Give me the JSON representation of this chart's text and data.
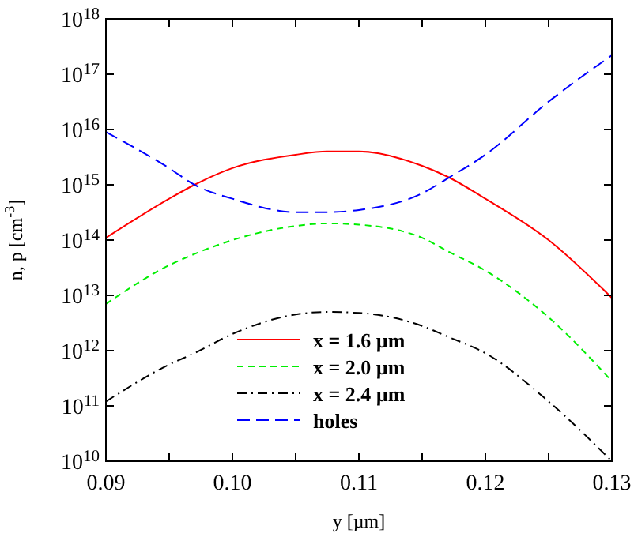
{
  "chart_data": {
    "type": "line",
    "xlabel": "y [µm]",
    "ylabel": "n, p [cm$^{-3}$]",
    "log": "y",
    "x": [
      0.09,
      0.095,
      0.097,
      0.1,
      0.105,
      0.1075,
      0.11,
      0.115,
      0.117,
      0.12,
      0.125,
      0.13
    ],
    "xlim": [
      0.09,
      0.13
    ],
    "xticks": [
      {
        "value": 0.09,
        "label": "0.09"
      },
      {
        "value": 0.095,
        "label": null
      },
      {
        "value": 0.1,
        "label": "0.10"
      },
      {
        "value": 0.105,
        "label": null
      },
      {
        "value": 0.11,
        "label": "0.11"
      },
      {
        "value": 0.115,
        "label": null
      },
      {
        "value": 0.12,
        "label": "0.12"
      },
      {
        "value": 0.125,
        "label": null
      },
      {
        "value": 0.13,
        "label": "0.13"
      }
    ],
    "ylim": [
      10000000000.0,
      1e+18
    ],
    "yticks": [
      {
        "value": 10000000000.0,
        "label": "10$^{10}$"
      },
      {
        "value": 100000000000.0,
        "label": "10$^{11}$"
      },
      {
        "value": 1000000000000.0,
        "label": "10$^{12}$"
      },
      {
        "value": 10000000000000.0,
        "label": "10$^{13}$"
      },
      {
        "value": 100000000000000.0,
        "label": "10$^{14}$"
      },
      {
        "value": 1000000000000000.0,
        "label": "10$^{15}$"
      },
      {
        "value": 1e+16,
        "label": "10$^{16}$"
      },
      {
        "value": 1e+17,
        "label": "10$^{17}$"
      },
      {
        "value": 1e+18,
        "label": "10$^{18}$"
      }
    ],
    "legend": "bottom",
    "grid": false,
    "series": [
      {
        "name": "x = 1.6 µm",
        "color": "#ff0000",
        "line_style": "solid",
        "values": [
          110000000000000.0,
          560000000000000.0,
          1000000000000000.0,
          2000000000000000.0,
          3500000000000000.0,
          4000000000000000.0,
          4000000000000000.0,
          2200000000000000.0,
          1400000000000000.0,
          560000000000000.0,
          100000000000000.0,
          9000000000000.0
        ]
      },
      {
        "name": "x = 2.0 µm",
        "color": "#00ee00",
        "line_style": "dashed",
        "values": [
          7000000000000.0,
          35000000000000.0,
          56000000000000.0,
          100000000000000.0,
          180000000000000.0,
          200000000000000.0,
          190000000000000.0,
          110000000000000.0,
          63000000000000.0,
          28000000000000.0,
          4000000000000.0,
          280000000000.0
        ]
      },
      {
        "name": "x = 2.4 µm",
        "color": "#000000",
        "line_style": "dashdot",
        "values": [
          120000000000.0,
          560000000000.0,
          900000000000.0,
          2000000000000.0,
          4500000000000.0,
          5000000000000.0,
          4800000000000.0,
          2800000000000.0,
          1800000000000.0,
          900000000000.0,
          120000000000.0,
          10000000000.0
        ]
      },
      {
        "name": "holes",
        "color": "#0000ff",
        "line_style": "longdash",
        "values": [
          9000000000000000.0,
          2000000000000000.0,
          1000000000000000.0,
          560000000000000.0,
          320000000000000.0,
          320000000000000.0,
          350000000000000.0,
          700000000000000.0,
          1300000000000000.0,
          3500000000000000.0,
          3.2e+16,
          2.2e+17
        ]
      }
    ]
  }
}
